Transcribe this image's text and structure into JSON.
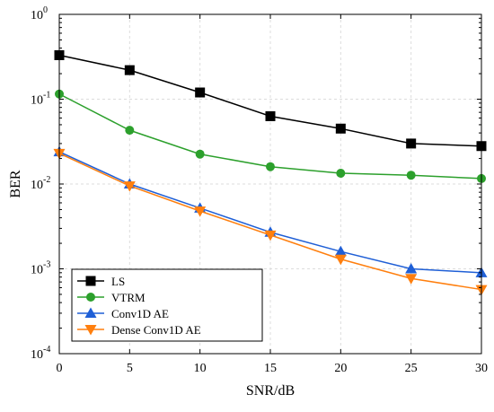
{
  "chart_data": {
    "type": "line",
    "title": "",
    "xlabel": "SNR/dB",
    "ylabel": "BER",
    "x": [
      0,
      5,
      10,
      15,
      20,
      25,
      30
    ],
    "xlim": [
      0,
      30
    ],
    "ylim": [
      0.0001,
      1
    ],
    "yscale": "log",
    "grid": true,
    "legend_position": "bottom-left",
    "x_ticks": [
      "0",
      "5",
      "10",
      "15",
      "20",
      "25",
      "30"
    ],
    "y_ticks": [
      {
        "value": 0.0001,
        "base": "10",
        "exp": "-4"
      },
      {
        "value": 0.001,
        "base": "10",
        "exp": "-3"
      },
      {
        "value": 0.01,
        "base": "10",
        "exp": "-2"
      },
      {
        "value": 0.1,
        "base": "10",
        "exp": "-1"
      },
      {
        "value": 1,
        "base": "10",
        "exp": "0"
      }
    ],
    "series": [
      {
        "name": "LS",
        "color": "#000000",
        "marker": "square",
        "values": [
          0.33,
          0.22,
          0.12,
          0.063,
          0.045,
          0.03,
          0.028
        ]
      },
      {
        "name": "VTRM",
        "color": "#2ca02c",
        "marker": "circle",
        "values": [
          0.115,
          0.043,
          0.0225,
          0.016,
          0.0134,
          0.0127,
          0.0116
        ]
      },
      {
        "name": "Conv1D AE",
        "color": "#1f5fd6",
        "marker": "triangle-up",
        "values": [
          0.024,
          0.01,
          0.0052,
          0.0027,
          0.0016,
          0.001,
          0.0009
        ]
      },
      {
        "name": "Dense Conv1D AE",
        "color": "#ff7f0e",
        "marker": "triangle-down",
        "values": [
          0.023,
          0.0095,
          0.0048,
          0.0025,
          0.0013,
          0.00077,
          0.00057
        ]
      }
    ]
  }
}
